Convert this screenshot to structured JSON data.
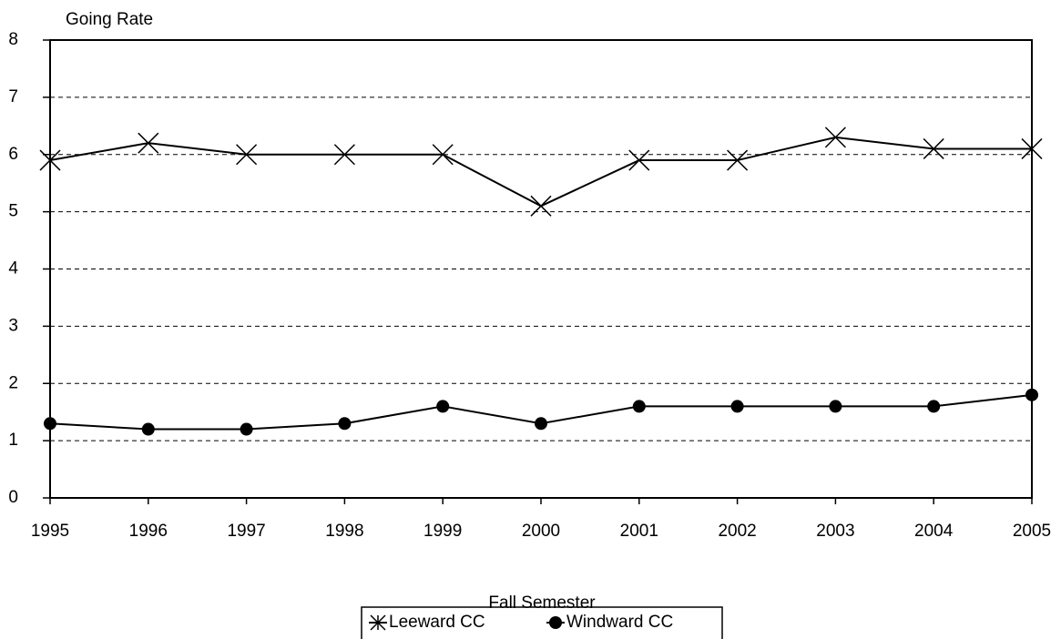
{
  "chart_data": {
    "type": "line",
    "y_label": "Going Rate",
    "x_label": "Fall Semester",
    "x": [
      1995,
      1996,
      1997,
      1998,
      1999,
      2000,
      2001,
      2002,
      2003,
      2004,
      2005
    ],
    "xlim": [
      1995,
      2005
    ],
    "xticks": [
      1995,
      1996,
      1997,
      1998,
      1999,
      2000,
      2001,
      2002,
      2003,
      2004,
      2005
    ],
    "ylim": [
      0,
      8
    ],
    "yticks": [
      0,
      1,
      2,
      3,
      4,
      5,
      6,
      7,
      8
    ],
    "grid": true,
    "legend": "bottom",
    "series": [
      {
        "name": "Leeward CC",
        "color": "#000000",
        "marker": "x",
        "values": [
          5.9,
          6.2,
          6.0,
          6.0,
          6.0,
          5.1,
          5.9,
          5.9,
          6.3,
          6.1,
          6.1
        ]
      },
      {
        "name": "Windward CC",
        "color": "#000000",
        "marker": "circle",
        "values": [
          1.3,
          1.2,
          1.2,
          1.3,
          1.6,
          1.3,
          1.6,
          1.6,
          1.6,
          1.6,
          1.8
        ]
      }
    ]
  }
}
